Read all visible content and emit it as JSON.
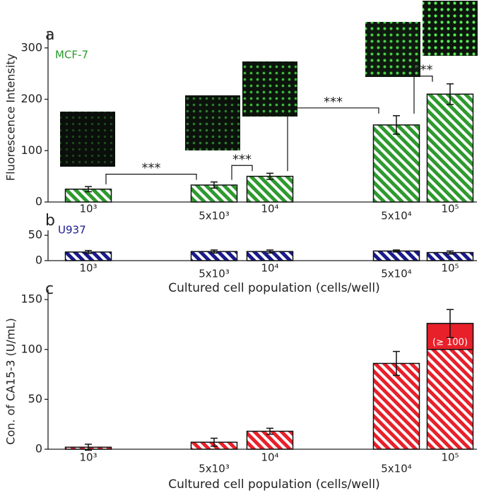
{
  "chart_data": [
    {
      "type": "bar",
      "panel": "a",
      "label": "MCF-7",
      "label_color": "#2a9a2a",
      "ylabel": "Fluorescence Intensity",
      "categories": [
        "10³",
        "5x10³",
        "10⁴",
        "5x10⁴",
        "10⁵"
      ],
      "series": [
        {
          "color": "#2e9a2e",
          "values": [
            25,
            33,
            50,
            150,
            210
          ],
          "errors": [
            5,
            6,
            6,
            18,
            20
          ]
        }
      ],
      "ylim": [
        0,
        330
      ],
      "yticks": [
        0,
        100,
        200,
        300
      ],
      "hatch": true,
      "annotations": [
        "***",
        "***",
        "***",
        "***"
      ]
    },
    {
      "type": "bar",
      "panel": "b",
      "label": "U937",
      "label_color": "#1a1a8c",
      "xlabel": "Cultured cell population (cells/well)",
      "categories": [
        "10³",
        "5x10³",
        "10⁴",
        "5x10⁴",
        "10⁵"
      ],
      "series": [
        {
          "color": "#1a1a8c",
          "values": [
            17,
            18,
            18,
            19,
            16
          ],
          "errors": [
            3,
            3,
            3,
            2,
            3
          ]
        }
      ],
      "ylim": [
        0,
        60
      ],
      "yticks": [
        0,
        50
      ],
      "hatch": true
    },
    {
      "type": "bar",
      "panel": "c",
      "ylabel": "Con. of CA15-3 (U/mL)",
      "xlabel": "Cultured cell population (cells/well)",
      "categories": [
        "10³",
        "5x10³",
        "10⁴",
        "5x10⁴",
        "10⁵"
      ],
      "series": [
        {
          "color": "#e8202a",
          "values": [
            2,
            7,
            18,
            86,
            126
          ],
          "errors": [
            3,
            4,
            3,
            12,
            14
          ]
        }
      ],
      "ylim": [
        0,
        160
      ],
      "yticks": [
        0,
        50,
        100,
        150
      ],
      "hatch": true,
      "saturation": {
        "value": 100,
        "label": "(≥ 100)"
      }
    }
  ]
}
